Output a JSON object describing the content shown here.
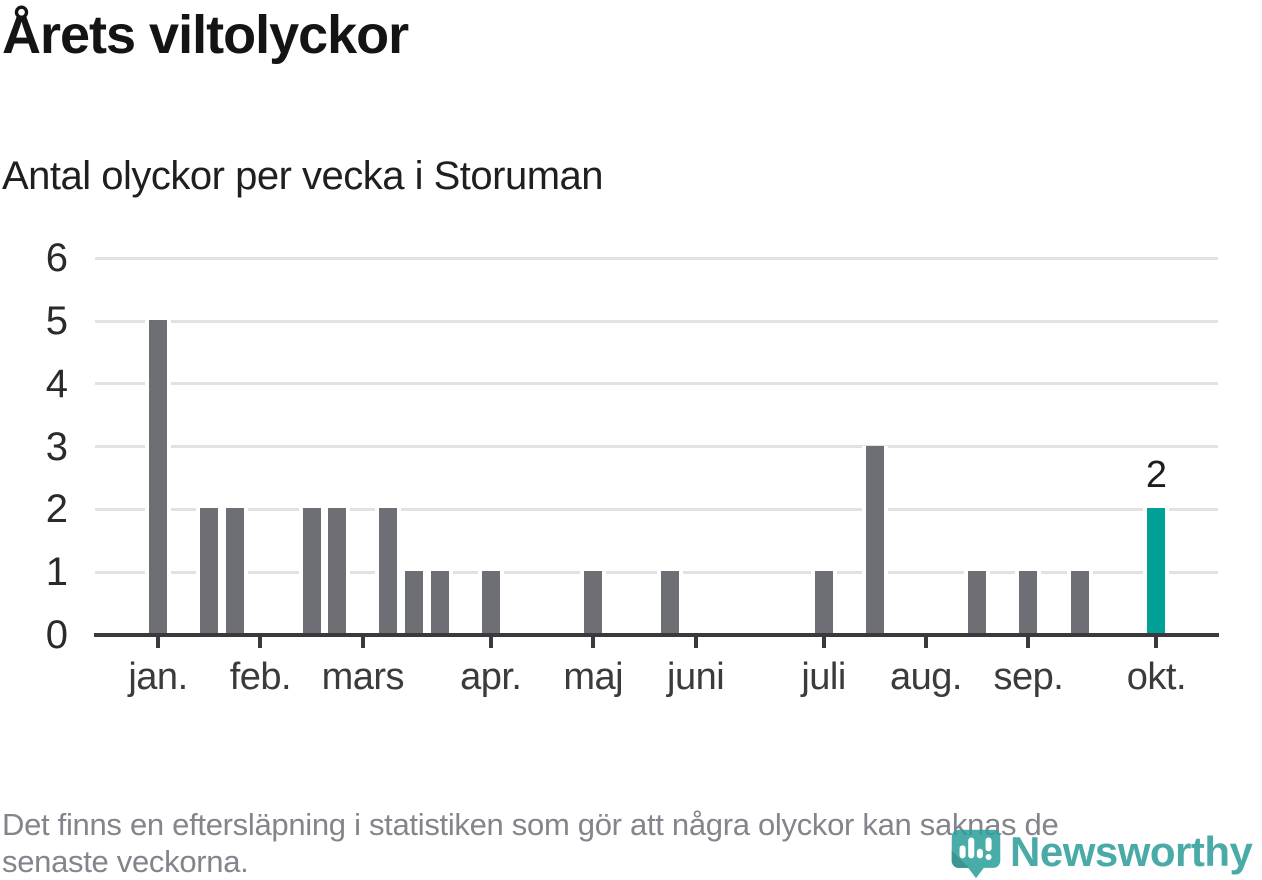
{
  "header": {
    "title": "Årets viltolyckor",
    "subtitle": "Antal olyckor per vecka i Storuman"
  },
  "chart_data": {
    "type": "bar",
    "title": "Årets viltolyckor",
    "subtitle": "Antal olyckor per vecka i Storuman",
    "x_unit": "vecka",
    "n_weeks": 40,
    "values_by_week": [
      5,
      0,
      2,
      2,
      0,
      0,
      2,
      2,
      0,
      2,
      1,
      1,
      0,
      1,
      0,
      0,
      0,
      1,
      0,
      0,
      1,
      0,
      0,
      0,
      0,
      0,
      1,
      0,
      3,
      0,
      0,
      0,
      1,
      0,
      1,
      0,
      1,
      0,
      0,
      2
    ],
    "highlight_week": 39,
    "highlight_value_label": "2",
    "month_ticks": [
      {
        "label": "jan.",
        "week": 0
      },
      {
        "label": "feb.",
        "week": 4
      },
      {
        "label": "mars",
        "week": 8
      },
      {
        "label": "apr.",
        "week": 13
      },
      {
        "label": "maj",
        "week": 17
      },
      {
        "label": "juni",
        "week": 21
      },
      {
        "label": "juli",
        "week": 26
      },
      {
        "label": "aug.",
        "week": 30
      },
      {
        "label": "sep.",
        "week": 34
      },
      {
        "label": "okt.",
        "week": 39
      }
    ],
    "yticks": [
      0,
      1,
      2,
      3,
      4,
      5,
      6
    ],
    "ylim": [
      0,
      6
    ],
    "grid": true,
    "legend": "none",
    "colors": {
      "bar": "#6e6e75",
      "highlight": "#00a096",
      "gridline": "#e2e2e2",
      "axis": "#3a3a3e",
      "text": "#1d1d1d",
      "muted": "#84848c",
      "logo_teal": "#2f9e9a"
    }
  },
  "footer": {
    "line1": "Det finns en eftersläpning i statistiken som gör att några olyckor kan saknas de",
    "line2": "senaste veckorna."
  },
  "logo": {
    "wordmark": "Newsworthy",
    "icon": "newsworthy-pin-barchart-icon"
  }
}
